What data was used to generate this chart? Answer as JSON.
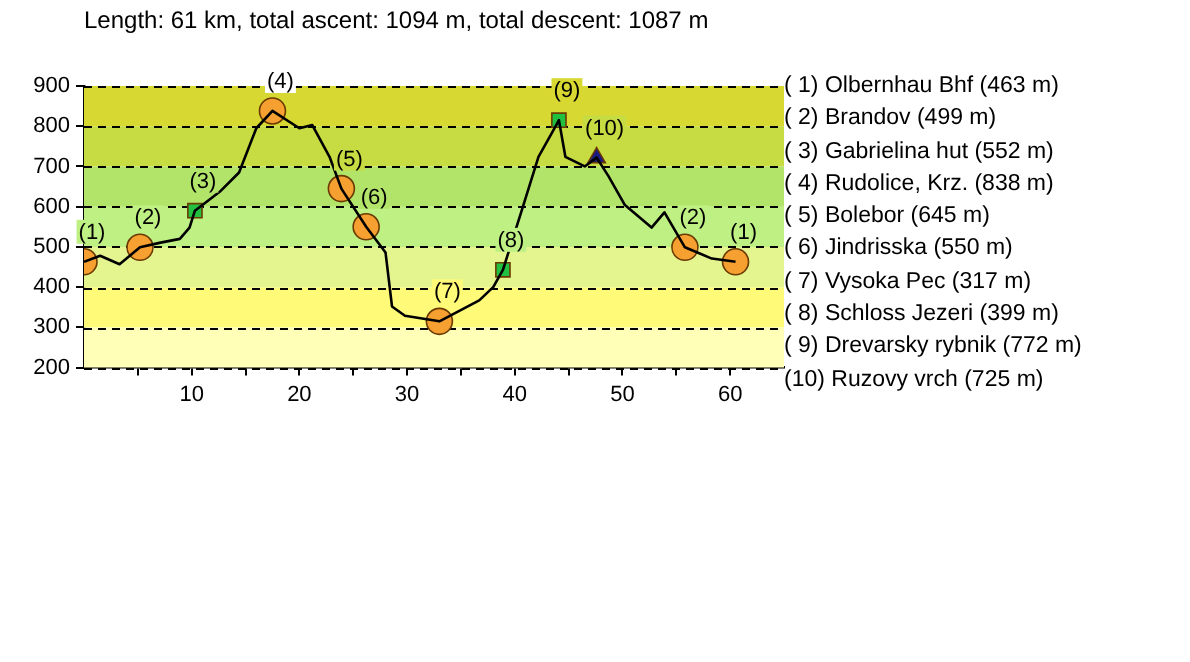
{
  "chart_data": {
    "type": "line",
    "title": "Length: 61 km, total ascent: 1094 m, total descent: 1087 m",
    "xlim": [
      0,
      65
    ],
    "ylim": [
      200,
      900
    ],
    "xticks": [
      {
        "value": 5,
        "label": null
      },
      10,
      {
        "value": 15,
        "label": null
      },
      20,
      {
        "value": 25,
        "label": null
      },
      30,
      {
        "value": 35,
        "label": null
      },
      40,
      {
        "value": 45,
        "label": null
      },
      50,
      {
        "value": 55,
        "label": null
      },
      60
    ],
    "yticks": [
      200,
      300,
      400,
      500,
      600,
      700,
      800,
      900
    ],
    "grid": "y",
    "legend": false,
    "bands": [
      {
        "axis": "y",
        "from": 200,
        "to": 300,
        "color": "#ffffb8"
      },
      {
        "axis": "y",
        "from": 300,
        "to": 400,
        "color": "#fffa78"
      },
      {
        "axis": "y",
        "from": 400,
        "to": 500,
        "color": "#e4f590"
      },
      {
        "axis": "y",
        "from": 500,
        "to": 600,
        "color": "#bff084"
      },
      {
        "axis": "y",
        "from": 600,
        "to": 700,
        "color": "#b2e46a"
      },
      {
        "axis": "y",
        "from": 700,
        "to": 800,
        "color": "#c6dc42"
      },
      {
        "axis": "y",
        "from": 800,
        "to": 900,
        "color": "#d8d832"
      }
    ],
    "series": [
      {
        "color": "#000000",
        "marker": "none",
        "line_style": "solid",
        "x": [
          0,
          1.5,
          3.3,
          5.2,
          7,
          8.9,
          9.8,
          10.3,
          12.6,
          14.4,
          16,
          17.5,
          20,
          21.2,
          22.8,
          23.9,
          26.2,
          28,
          28.6,
          29.8,
          33,
          36.7,
          38,
          38.9,
          40.7,
          42.2,
          43.5,
          44.1,
          44.7,
          46.5,
          47.6,
          48.7,
          50.2,
          52.7,
          53.9,
          55.8,
          58.3,
          60.5
        ],
        "values": [
          463,
          478,
          457,
          499,
          510,
          520,
          548,
          590,
          637,
          685,
          795,
          838,
          795,
          803,
          724,
          645,
          550,
          486,
          352,
          329,
          315,
          367,
          400,
          443,
          595,
          724,
          786,
          815,
          724,
          700,
          722,
          676,
          605,
          548,
          586,
          499,
          471,
          463
        ]
      },
      {
        "type": "scatter",
        "color": "#f5a030",
        "marker": "circle",
        "x": [
          0,
          5.2,
          17.5,
          23.9,
          26.2,
          33,
          55.8,
          60.5
        ],
        "values": [
          463,
          499,
          838,
          645,
          550,
          315,
          499,
          463
        ]
      },
      {
        "type": "scatter",
        "color": "#22c040",
        "marker": "square",
        "x": [
          10.3,
          38.9,
          44.1
        ],
        "values": [
          590,
          443,
          815
        ]
      },
      {
        "type": "scatter",
        "color": "#1a1a80",
        "marker": "triangle",
        "x": [
          47.6
        ],
        "values": [
          722
        ]
      }
    ],
    "annotations": [
      {
        "text": "(1)",
        "x": 0,
        "y": 463
      },
      {
        "text": "(2)",
        "x": 5.2,
        "y": 499
      },
      {
        "text": "(3)",
        "x": 10.3,
        "y": 590
      },
      {
        "text": "(4)",
        "x": 17.5,
        "y": 838
      },
      {
        "text": "(5)",
        "x": 23.9,
        "y": 645
      },
      {
        "text": "(6)",
        "x": 26.2,
        "y": 550
      },
      {
        "text": "(7)",
        "x": 33,
        "y": 315
      },
      {
        "text": "(8)",
        "x": 38.9,
        "y": 443
      },
      {
        "text": "(9)",
        "x": 44.1,
        "y": 815
      },
      {
        "text": "(10)",
        "x": 47.6,
        "y": 722
      },
      {
        "text": "(2)",
        "x": 55.8,
        "y": 499
      },
      {
        "text": "(1)",
        "x": 60.5,
        "y": 463
      },
      "( 1) Olbernhau Bhf (463 m)",
      "( 2) Brandov (499 m)",
      "( 3) Gabrielina hut (552 m)",
      "( 4) Rudolice, Krz. (838 m)",
      "( 5) Bolebor (645 m)",
      "( 6) Jindrisska (550 m)",
      "( 7) Vysoka Pec (317 m)",
      "( 8) Schloss Jezeri (399 m)",
      "( 9) Drevarsky rybnik (772 m)",
      "(10) Ruzovy vrch (725 m)"
    ]
  }
}
